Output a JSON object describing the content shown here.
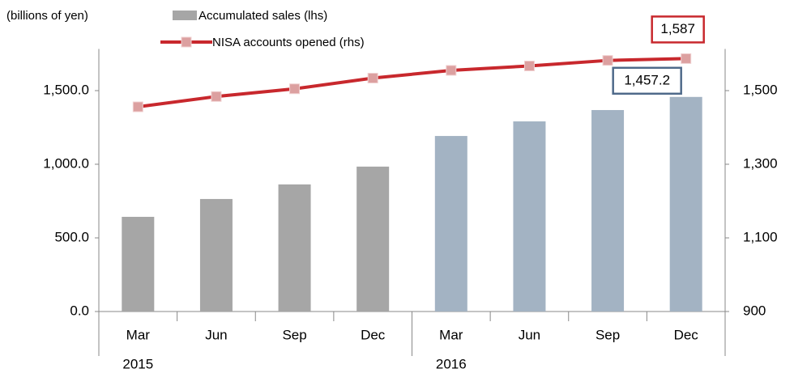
{
  "chart_data": {
    "type": "bar_line",
    "unit_label": "(billions of yen)",
    "categories": [
      "Mar",
      "Jun",
      "Sep",
      "Dec",
      "Mar",
      "Jun",
      "Sep",
      "Dec"
    ],
    "year_labels": [
      "2015",
      "2016"
    ],
    "series": [
      {
        "name": "Accumulated sales (lhs)",
        "type": "bar",
        "color": "#a6a6a6",
        "colors": [
          "#a6a6a6",
          "#a6a6a6",
          "#a6a6a6",
          "#a6a6a6",
          "#a3b3c3",
          "#a3b3c3",
          "#a3b3c3",
          "#a3b3c3"
        ],
        "values": [
          643,
          764,
          863,
          984,
          1192,
          1291,
          1368,
          1457.2
        ],
        "value_labels": [
          null,
          null,
          null,
          null,
          null,
          null,
          null,
          "1,457.2"
        ],
        "label_color": "#4f6a8a"
      },
      {
        "name": "NISA accounts opened (rhs)",
        "type": "line",
        "axis": "y2",
        "color": "#c8282d",
        "marker_color": "#dca0a0",
        "values": [
          1456,
          1484,
          1505,
          1534,
          1555,
          1567,
          1582,
          1587
        ],
        "value_labels": [
          null,
          null,
          null,
          null,
          null,
          null,
          null,
          "1,587"
        ],
        "label_color": "#c8282d"
      }
    ],
    "ylim": [
      0,
      1750
    ],
    "yticks": [
      {
        "value": 0,
        "label": "0.0"
      },
      {
        "value": 500,
        "label": "500.0"
      },
      {
        "value": 1000,
        "label": "1,000.0"
      },
      {
        "value": 1500,
        "label": "1,500.0"
      }
    ],
    "y2lim": [
      900,
      1600
    ],
    "y2ticks": [
      900,
      {
        "value": 1100,
        "label": "1,100"
      },
      {
        "value": 1300,
        "label": "1,300"
      },
      {
        "value": 1500,
        "label": "1,500"
      }
    ]
  }
}
